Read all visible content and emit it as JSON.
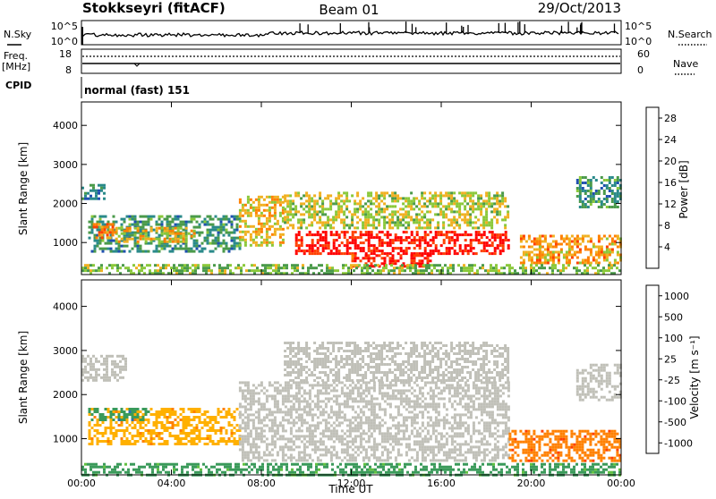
{
  "header": {
    "station": "Stokkseyri (fitACF)",
    "beam": "Beam 01",
    "date": "29/Oct/2013"
  },
  "aux": {
    "nsky_label": "N.Sky",
    "nsky_ticks": [
      "10^5",
      "10^0"
    ],
    "nsearch_label": "N.Search",
    "nsearch_ticks": [
      "10^5",
      "10^0"
    ],
    "freq_label": "Freq.",
    "freq_unit": "[MHz]",
    "freq_ticks": [
      "18",
      "8"
    ],
    "nave_label": "Nave",
    "nave_ticks": [
      "60",
      "0"
    ],
    "cpid_label": "CPID",
    "cpid_value": "normal (fast) 151"
  },
  "colors": {
    "power_scale": [
      "#1a1aff",
      "#1f4fb0",
      "#2a8a8a",
      "#4a9a4a",
      "#8ac83a",
      "#f0b020",
      "#ff8000",
      "#ff4000",
      "#ff0000"
    ],
    "velocity_scale": [
      "#1f3fcf",
      "#2a6fb0",
      "#3a9a5a",
      "#60c040",
      "#c8c8c0",
      "#ffb000",
      "#ff8000",
      "#ff4000",
      "#ff0000"
    ],
    "ground_scatter": "#c0c0b8"
  },
  "chart_data": [
    {
      "type": "heatmap",
      "name": "power",
      "xlabel": "Time UT",
      "ylabel": "Slant Range [km]",
      "xlim": [
        0,
        24
      ],
      "ylim": [
        180,
        4600
      ],
      "x_ticks": [
        "00:00",
        "04:00",
        "08:00",
        "12:00",
        "16:00",
        "20:00",
        "00:00"
      ],
      "y_ticks": [
        "1000",
        "2000",
        "3000",
        "4000"
      ],
      "colorbar": {
        "label": "Power [dB]",
        "ticks": [
          "4",
          "8",
          "12",
          "16",
          "20",
          "24",
          "28"
        ],
        "range": [
          0,
          30
        ]
      },
      "regions": [
        {
          "t": [
            0.0,
            1.0
          ],
          "r": [
            2100,
            2500
          ],
          "v": 8
        },
        {
          "t": [
            0.3,
            7.0
          ],
          "r": [
            800,
            1700
          ],
          "v": 10
        },
        {
          "t": [
            1.5,
            5.0
          ],
          "r": [
            1000,
            1400
          ],
          "v": 18
        },
        {
          "t": [
            0.5,
            1.5
          ],
          "r": [
            1100,
            1500
          ],
          "v": 22
        },
        {
          "t": [
            7.0,
            9.0
          ],
          "r": [
            900,
            2200
          ],
          "v": 18
        },
        {
          "t": [
            9.0,
            19.0
          ],
          "r": [
            1400,
            2300
          ],
          "v": 16
        },
        {
          "t": [
            9.5,
            19.0
          ],
          "r": [
            700,
            1300
          ],
          "v": 28
        },
        {
          "t": [
            12.0,
            15.5
          ],
          "r": [
            420,
            700
          ],
          "v": 27
        },
        {
          "t": [
            19.5,
            24.0
          ],
          "r": [
            500,
            1200
          ],
          "v": 20
        },
        {
          "t": [
            22.0,
            24.0
          ],
          "r": [
            1900,
            2700
          ],
          "v": 10
        },
        {
          "t": [
            0.0,
            24.0
          ],
          "r": [
            200,
            450
          ],
          "v": 14
        }
      ]
    },
    {
      "type": "heatmap",
      "name": "velocity",
      "xlabel": "Time UT",
      "ylabel": "Slant Range [km]",
      "xlim": [
        0,
        24
      ],
      "ylim": [
        180,
        4600
      ],
      "x_ticks": [
        "00:00",
        "04:00",
        "08:00",
        "12:00",
        "16:00",
        "20:00",
        "00:00"
      ],
      "y_ticks": [
        "1000",
        "2000",
        "3000",
        "4000"
      ],
      "colorbar": {
        "label": "Velocity [m s⁻¹]",
        "ticks": [
          "1000",
          "500",
          "100",
          "25",
          "-25",
          "-100",
          "-500",
          "-1000"
        ]
      },
      "regions": [
        {
          "t": [
            0.3,
            7.0
          ],
          "r": [
            900,
            1700
          ],
          "v": -100
        },
        {
          "t": [
            0.3,
            3.0
          ],
          "r": [
            1400,
            1700
          ],
          "v": 300
        },
        {
          "t": [
            0.0,
            2.0
          ],
          "r": [
            2300,
            2900
          ],
          "v": 0
        },
        {
          "t": [
            7.0,
            19.0
          ],
          "r": [
            500,
            2300
          ],
          "v": 0
        },
        {
          "t": [
            9.0,
            19.0
          ],
          "r": [
            2300,
            3200
          ],
          "v": 0
        },
        {
          "t": [
            19.0,
            24.0
          ],
          "r": [
            500,
            1200
          ],
          "v": -500
        },
        {
          "t": [
            22.0,
            24.0
          ],
          "r": [
            1900,
            2700
          ],
          "v": 0
        },
        {
          "t": [
            0.0,
            24.0
          ],
          "r": [
            200,
            450
          ],
          "v": 150
        }
      ]
    }
  ]
}
